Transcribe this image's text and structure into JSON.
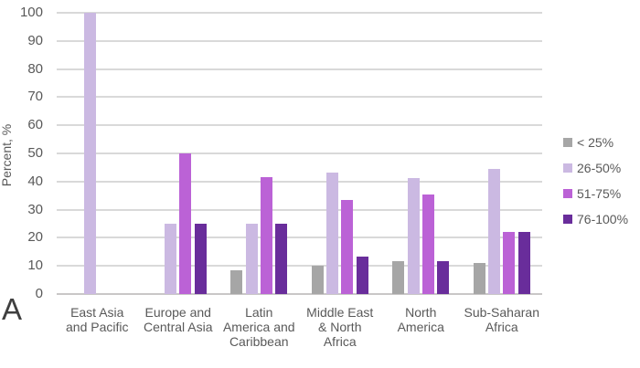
{
  "panel_label": "A",
  "colors": {
    "gridline": "#d9d9d9",
    "baseline": "#c9c7c7",
    "text": "#595959",
    "panel_label_color": "#3f3f3f",
    "background": "#ffffff"
  },
  "chart_data": {
    "type": "bar",
    "title": "",
    "xlabel": "",
    "ylabel": "Percent, %",
    "ylim": [
      0,
      100
    ],
    "ytick_step": 10,
    "grid": true,
    "legend_position": "right",
    "categories": [
      "East Asia and Pacific",
      "Europe and Central Asia",
      "Latin America and Caribbean",
      "Middle East & North Africa",
      "North America",
      "Sub-Saharan Africa"
    ],
    "category_label_lines": [
      [
        "East Asia",
        "and Pacific"
      ],
      [
        "Europe and",
        "Central Asia"
      ],
      [
        "Latin",
        "America and",
        "Caribbean"
      ],
      [
        "Middle East",
        "& North",
        "Africa"
      ],
      [
        "North",
        "America"
      ],
      [
        "Sub-Saharan",
        "Africa"
      ]
    ],
    "series": [
      {
        "name": "< 25%",
        "color": "#a6a6a6",
        "values": [
          0,
          0,
          8.3,
          10,
          11.8,
          11.1
        ]
      },
      {
        "name": "26-50%",
        "color": "#cbb9e2",
        "values": [
          100,
          25,
          25,
          43.3,
          41.2,
          44.4
        ]
      },
      {
        "name": "51-75%",
        "color": "#bb62d6",
        "values": [
          0,
          50,
          41.7,
          33.3,
          35.3,
          22.2
        ]
      },
      {
        "name": "76-100%",
        "color": "#692d9b",
        "values": [
          0,
          25,
          25,
          13.3,
          11.8,
          22.2
        ]
      }
    ]
  }
}
